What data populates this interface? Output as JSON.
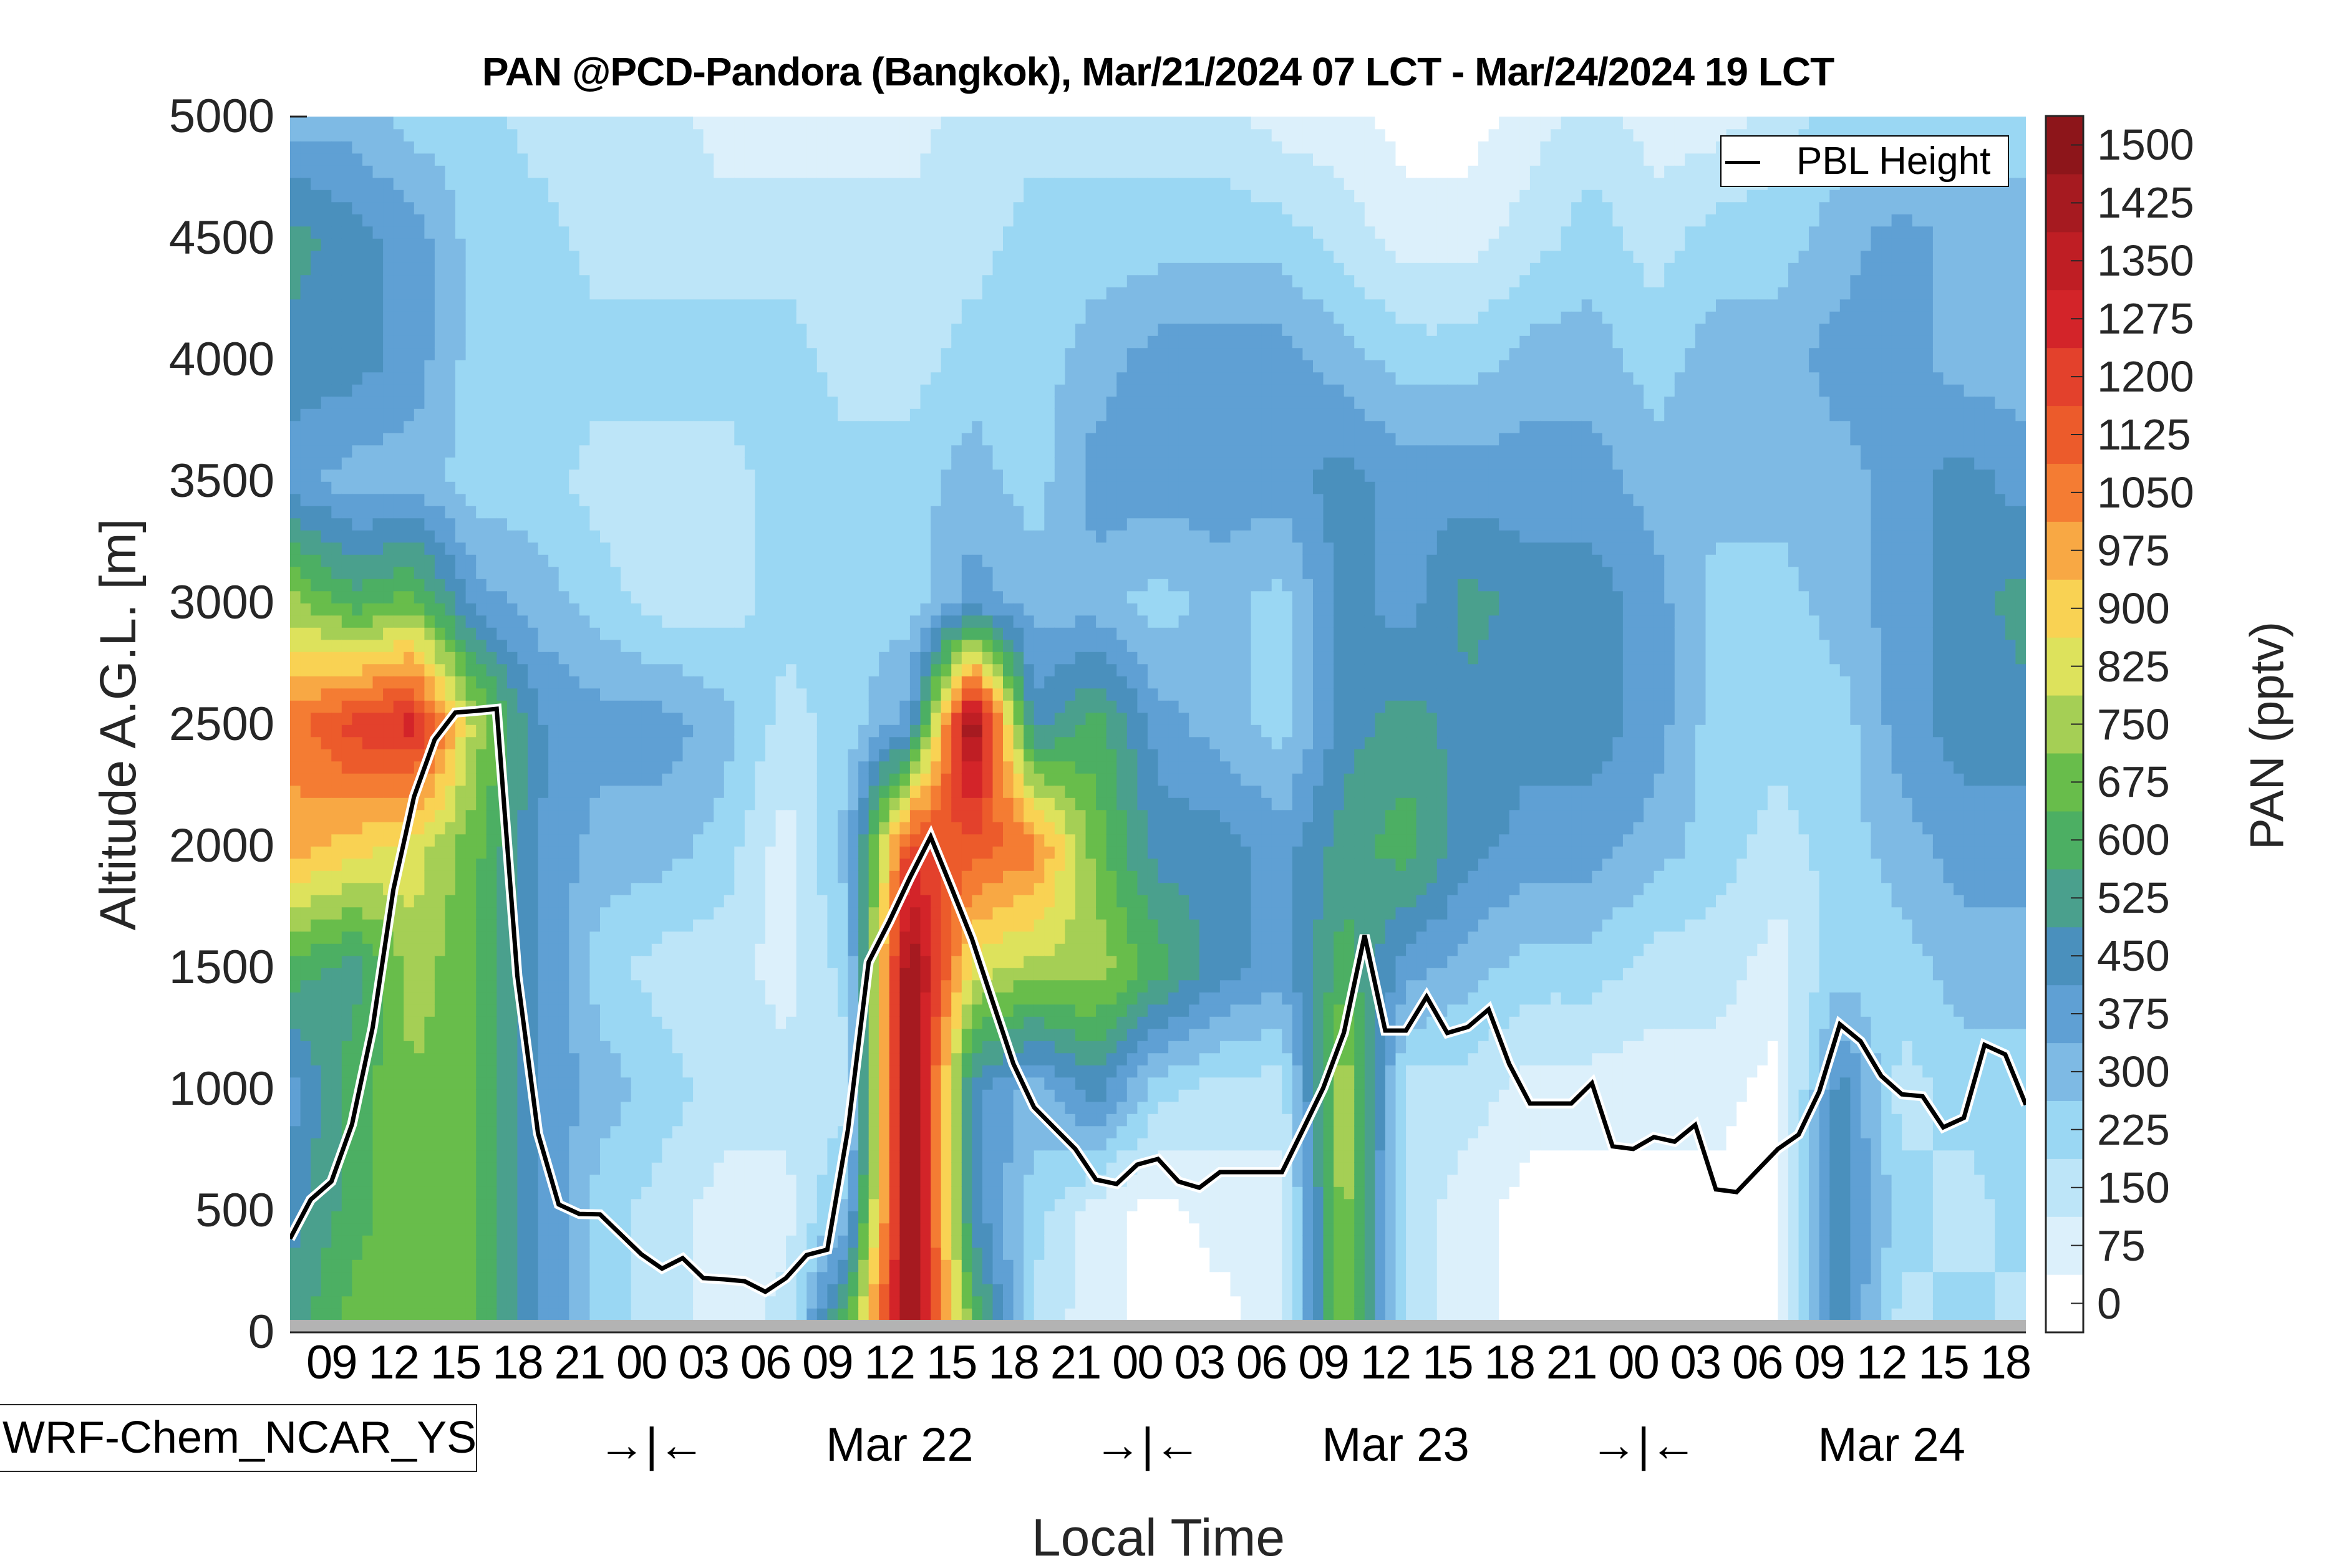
{
  "chart_data": {
    "type": "heatmap",
    "subtype": "filled-contour-time-height",
    "title": "PAN @PCD-Pandora (Bangkok), Mar/21/2024 07 LCT - Mar/24/2024 19 LCT",
    "xlabel": "Local Time",
    "ylabel": "Altitude A.G.L. [m]",
    "colorbar_label": "PAN (pptv)",
    "model_label": "WRF-Chem_NCAR_YSU",
    "xlim_hours_from_start": [
      0,
      84
    ],
    "ylim": [
      0,
      5000
    ],
    "y_ticks": [
      0,
      500,
      1000,
      1500,
      2000,
      2500,
      3000,
      3500,
      4000,
      4500,
      5000
    ],
    "x_tick_hours": [
      2,
      5,
      8,
      11,
      14,
      17,
      20,
      23,
      26,
      29,
      32,
      35,
      38,
      41,
      44,
      47,
      50,
      53,
      56,
      59,
      62,
      65,
      68,
      71,
      74,
      77,
      80,
      83
    ],
    "x_tick_labels": [
      "09",
      "12",
      "15",
      "18",
      "21",
      "00",
      "03",
      "06",
      "09",
      "12",
      "15",
      "18",
      "21",
      "00",
      "03",
      "06",
      "09",
      "12",
      "15",
      "18",
      "21",
      "00",
      "03",
      "06",
      "09",
      "12",
      "15",
      "18"
    ],
    "date_row": [
      {
        "label": "→|←",
        "hour": 17.5
      },
      {
        "label": "Mar 22",
        "hour": 29.5
      },
      {
        "label": "→|←",
        "hour": 41.5
      },
      {
        "label": "Mar 23",
        "hour": 53.5
      },
      {
        "label": "→|←",
        "hour": 65.5
      },
      {
        "label": "Mar 24",
        "hour": 77.5
      }
    ],
    "colorbar": {
      "levels": [
        0,
        75,
        150,
        225,
        300,
        375,
        450,
        525,
        600,
        675,
        750,
        825,
        900,
        975,
        1050,
        1125,
        1200,
        1275,
        1350,
        1425,
        1500
      ],
      "tick_labels": [
        "0",
        "75",
        "150",
        "225",
        "300",
        "375",
        "450",
        "525",
        "600",
        "675",
        "750",
        "825",
        "900",
        "975",
        "1050",
        "1125",
        "1200",
        "1275",
        "1350",
        "1425",
        "1500"
      ],
      "colors": [
        "#ffffff",
        "#dcf0fb",
        "#bde5f8",
        "#9ad7f3",
        "#7ebae4",
        "#5fa0d4",
        "#4a90bd",
        "#4aa08d",
        "#4caf63",
        "#68bd4b",
        "#a5cf55",
        "#dde25c",
        "#f9d253",
        "#f8a844",
        "#f47c33",
        "#ec5b2b",
        "#e3412c",
        "#d32429",
        "#bf1e24",
        "#a61a20",
        "#8d151a"
      ]
    },
    "legend": {
      "entries": [
        "PBL Height"
      ],
      "placement": "top-right"
    },
    "pbl_height": {
      "name": "PBL Height",
      "hours": [
        0,
        1,
        2,
        3,
        4,
        5,
        6,
        7,
        8,
        9,
        10,
        11,
        12,
        13,
        14,
        15,
        16,
        17,
        18,
        19,
        20,
        21,
        22,
        23,
        24,
        25,
        26,
        27,
        28,
        29,
        30,
        31,
        32,
        33,
        34,
        35,
        36,
        37,
        38,
        39,
        40,
        41,
        42,
        43,
        44,
        45,
        46,
        47,
        48,
        49,
        50,
        51,
        52,
        53,
        54,
        55,
        56,
        57,
        58,
        59,
        60,
        61,
        62,
        63,
        64,
        65,
        66,
        67,
        68,
        69,
        70,
        71,
        72,
        73,
        74,
        75,
        76,
        77,
        78,
        79,
        80,
        81,
        82,
        83,
        84
      ],
      "values_m": [
        385,
        546,
        620,
        856,
        1254,
        1821,
        2203,
        2438,
        2549,
        2556,
        2564,
        1467,
        818,
        526,
        487,
        485,
        403,
        321,
        262,
        305,
        223,
        218,
        210,
        167,
        223,
        318,
        340,
        834,
        1523,
        1690,
        1870,
        2038,
        1830,
        1618,
        1360,
        1105,
        926,
        840,
        754,
        628,
        610,
        690,
        713,
        620,
        595,
        659,
        659,
        659,
        659,
        831,
        1005,
        1233,
        1633,
        1241,
        1241,
        1380,
        1231,
        1256,
        1328,
        1103,
        941,
        941,
        941,
        1025,
        765,
        754,
        803,
        784,
        853,
        588,
        577,
        666,
        754,
        813,
        990,
        1267,
        1197,
        1054,
        979,
        971,
        843,
        882,
        1182,
        1143,
        936
      ]
    },
    "field": {
      "description_units": "pptv",
      "hours": [
        0,
        3,
        6,
        9,
        12,
        15,
        18,
        21,
        24,
        27,
        30,
        33,
        36,
        39,
        42,
        45,
        48,
        51,
        54,
        57,
        60,
        63,
        66,
        69,
        72,
        75,
        78,
        81,
        84
      ],
      "altitudes_m": [
        0,
        500,
        1000,
        1500,
        2000,
        2500,
        3000,
        3500,
        4000,
        4500,
        5000
      ],
      "values": [
        [
          525,
          675,
          700,
          640,
          420,
          225,
          150,
          75,
          150,
          675,
          1500,
          675,
          150,
          75,
          0,
          0,
          75,
          760,
          150,
          75,
          0,
          0,
          0,
          0,
          0,
          450,
          150,
          225,
          150
        ],
        [
          450,
          600,
          700,
          640,
          420,
          225,
          150,
          75,
          75,
          300,
          1500,
          450,
          225,
          75,
          0,
          75,
          75,
          760,
          150,
          75,
          0,
          0,
          0,
          0,
          0,
          450,
          225,
          150,
          225
        ],
        [
          375,
          600,
          700,
          640,
          420,
          300,
          225,
          150,
          150,
          150,
          1500,
          450,
          300,
          450,
          225,
          150,
          150,
          800,
          150,
          150,
          75,
          75,
          75,
          75,
          0,
          450,
          150,
          225,
          225
        ],
        [
          600,
          525,
          760,
          640,
          420,
          225,
          150,
          150,
          75,
          225,
          1500,
          825,
          760,
          760,
          600,
          450,
          375,
          600,
          375,
          300,
          225,
          225,
          150,
          150,
          75,
          225,
          225,
          300,
          300
        ],
        [
          975,
          900,
          830,
          660,
          420,
          300,
          300,
          225,
          75,
          300,
          1200,
          1125,
          1050,
          675,
          450,
          450,
          375,
          525,
          600,
          450,
          375,
          375,
          300,
          225,
          150,
          225,
          300,
          375,
          375
        ],
        [
          1050,
          1200,
          1275,
          760,
          420,
          375,
          375,
          300,
          150,
          225,
          375,
          1500,
          450,
          600,
          375,
          300,
          225,
          450,
          525,
          450,
          450,
          450,
          375,
          225,
          225,
          225,
          375,
          450,
          450
        ],
        [
          750,
          600,
          675,
          375,
          300,
          225,
          150,
          150,
          225,
          225,
          225,
          375,
          300,
          300,
          225,
          300,
          225,
          450,
          375,
          525,
          450,
          450,
          375,
          225,
          225,
          300,
          375,
          450,
          525
        ],
        [
          375,
          300,
          300,
          225,
          225,
          150,
          150,
          150,
          225,
          225,
          225,
          300,
          225,
          375,
          375,
          375,
          375,
          450,
          375,
          375,
          375,
          375,
          300,
          300,
          300,
          300,
          375,
          450,
          375
        ],
        [
          450,
          450,
          375,
          225,
          225,
          225,
          225,
          225,
          225,
          150,
          150,
          225,
          225,
          300,
          375,
          375,
          375,
          300,
          225,
          225,
          300,
          300,
          225,
          300,
          300,
          375,
          375,
          300,
          300
        ],
        [
          525,
          450,
          375,
          225,
          225,
          150,
          150,
          150,
          150,
          150,
          150,
          150,
          225,
          225,
          225,
          225,
          225,
          150,
          75,
          75,
          150,
          225,
          150,
          225,
          225,
          300,
          375,
          300,
          300
        ],
        [
          300,
          300,
          225,
          225,
          150,
          150,
          150,
          75,
          75,
          75,
          75,
          150,
          150,
          150,
          150,
          150,
          75,
          75,
          0,
          0,
          75,
          150,
          75,
          75,
          150,
          225,
          225,
          225,
          225
        ]
      ]
    }
  }
}
